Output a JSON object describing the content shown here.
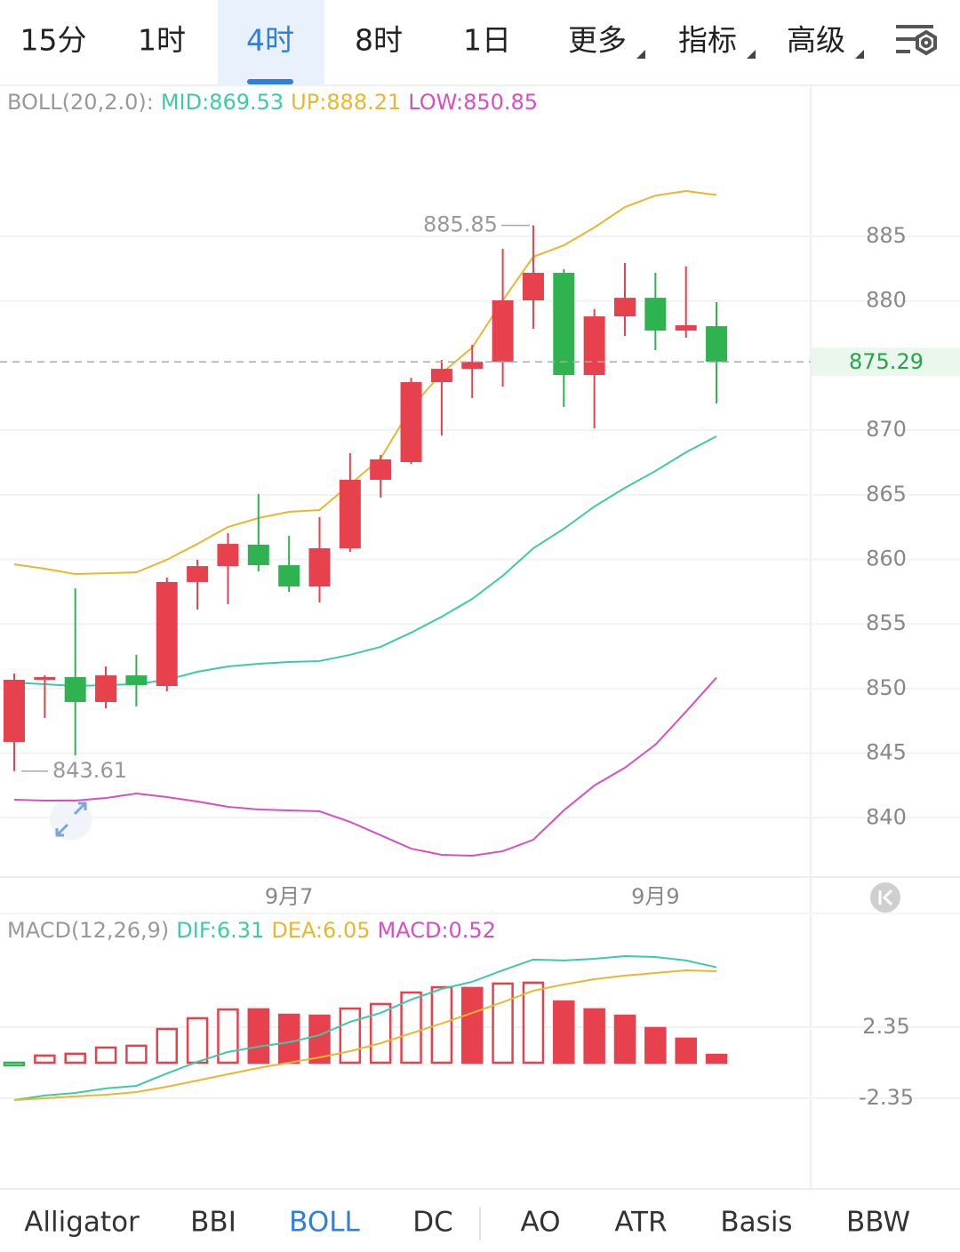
{
  "tabs": [
    "15分",
    "1时",
    "4时",
    "8时",
    "1日",
    "更多",
    "指标",
    "高级"
  ],
  "active_tab": 2,
  "chart_data": [
    {
      "type": "candlestick",
      "title": "BOLL(20,2.0):",
      "categories": [
        null,
        null,
        null,
        null,
        null,
        null,
        null,
        null,
        null,
        "9月7",
        null,
        null,
        null,
        null,
        null,
        null,
        null,
        null,
        null,
        null,
        null,
        "9月9",
        null,
        null
      ],
      "open": [
        845.87,
        850.68,
        850.89,
        848.96,
        851.02,
        850.2,
        858.25,
        859.48,
        861.14,
        859.55,
        857.9,
        860.86,
        866.16,
        867.53,
        873.72,
        874.75,
        875.3,
        880.05,
        882.18,
        874.27,
        878.81,
        880.25,
        877.71,
        878.05
      ],
      "high": [
        851.16,
        851.03,
        857.76,
        851.71,
        852.61,
        858.59,
        859.97,
        862.03,
        865.05,
        861.82,
        863.27,
        868.22,
        868.08,
        874.06,
        875.44,
        876.61,
        884.04,
        885.85,
        882.46,
        879.36,
        882.94,
        882.18,
        882.66,
        879.91
      ],
      "low": [
        843.61,
        847.72,
        844.83,
        848.48,
        848.62,
        849.79,
        856.11,
        856.53,
        859.07,
        857.49,
        856.66,
        860.58,
        864.78,
        867.39,
        869.59,
        872.48,
        873.38,
        877.85,
        871.8,
        870.14,
        877.3,
        876.2,
        877.16,
        872.07
      ],
      "close": [
        850.68,
        850.89,
        848.96,
        851.02,
        850.27,
        858.25,
        859.48,
        861.2,
        859.55,
        857.9,
        860.86,
        866.16,
        867.74,
        873.72,
        874.75,
        875.3,
        880.05,
        882.18,
        874.27,
        878.81,
        880.25,
        877.71,
        878.12,
        875.29
      ],
      "up_color": "#e8414e",
      "down_color": "#2eb350",
      "series": [
        {
          "name": "MID:869.53",
          "color": "#3ec9a7",
          "values": [
            850.47,
            850.34,
            850.2,
            850.27,
            850.34,
            850.68,
            851.3,
            851.71,
            851.92,
            852.06,
            852.13,
            852.61,
            853.23,
            854.33,
            855.56,
            856.94,
            858.73,
            860.86,
            862.37,
            864.09,
            865.54,
            866.84,
            868.29,
            869.53
          ]
        },
        {
          "name": "UP:888.21",
          "color": "#e8b730",
          "values": [
            859.62,
            859.28,
            858.87,
            858.93,
            859.0,
            859.97,
            861.2,
            862.51,
            863.2,
            863.68,
            863.82,
            865.81,
            867.81,
            871.73,
            874.41,
            876.4,
            880.05,
            883.42,
            884.31,
            885.69,
            887.27,
            888.16,
            888.51,
            888.21
          ]
        },
        {
          "name": "LOW:850.85",
          "color": "#d94fc0",
          "values": [
            841.4,
            841.33,
            841.33,
            841.53,
            841.88,
            841.6,
            841.26,
            840.85,
            840.64,
            840.57,
            840.5,
            839.68,
            838.65,
            837.61,
            837.13,
            837.06,
            837.41,
            838.3,
            840.57,
            842.5,
            843.87,
            845.66,
            848.21,
            850.85
          ]
        }
      ],
      "last_price": 875.29,
      "ylim": [
        835.55,
        896.42
      ],
      "yticks": [
        840,
        845,
        850,
        855,
        860,
        865,
        870,
        880,
        885
      ],
      "grid": true
    },
    {
      "type": "macd",
      "title": "MACD(12,26,9)",
      "series": [
        {
          "name": "DIF:6.31",
          "color": "#3ec9a7",
          "values": [
            -2.47,
            -2.17,
            -2.0,
            -1.7,
            -1.53,
            -0.71,
            0.06,
            0.71,
            1.06,
            1.35,
            1.82,
            2.7,
            3.29,
            4.17,
            4.88,
            5.35,
            6.11,
            6.82,
            6.76,
            6.87,
            7.05,
            6.99,
            6.76,
            6.31
          ]
        },
        {
          "name": "DEA:6.05",
          "color": "#e8b730",
          "values": [
            -2.47,
            -2.35,
            -2.23,
            -2.12,
            -1.94,
            -1.59,
            -1.18,
            -0.76,
            -0.35,
            0,
            0.35,
            0.76,
            1.29,
            1.94,
            2.59,
            3.29,
            4.0,
            4.76,
            5.17,
            5.52,
            5.76,
            5.93,
            6.11,
            6.05
          ]
        }
      ],
      "histogram": {
        "name": "MACD:0.52",
        "color": "#d94fc0",
        "up_color": "#e8414e",
        "down_color": "#2eb350",
        "values": [
          -0.12,
          0.53,
          0.65,
          1.06,
          1.18,
          2.29,
          3.0,
          3.58,
          3.53,
          3.17,
          3.11,
          3.64,
          3.94,
          4.7,
          5.05,
          4.94,
          5.29,
          5.35,
          4.05,
          3.53,
          3.11,
          2.29,
          1.59,
          0.52
        ]
      },
      "ylim": [
        -8.17,
        9.75
      ],
      "yticks": [
        -2.35,
        2.35
      ],
      "grid": true
    }
  ],
  "indicator_tabs": [
    "Alligator",
    "BBI",
    "BOLL",
    "DC",
    "AO",
    "ATR",
    "Basis",
    "BBW"
  ],
  "active_indicator": 2
}
